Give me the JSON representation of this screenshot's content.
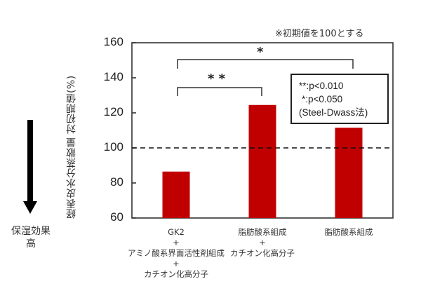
{
  "note": "※初期値を100とする",
  "arrow_label": [
    "保湿効果",
    "高"
  ],
  "legend": {
    "lines": [
      "**:p<0.010",
      " *:p<0.050",
      "(Steel-Dwass法)"
    ]
  },
  "significance": {
    "outer": {
      "label": "*",
      "from": 0,
      "to": 2
    },
    "inner": {
      "label": "* *",
      "from": 0,
      "to": 1
    }
  },
  "colors": {
    "bar": "#c00000",
    "axis": "#333333",
    "reference_line": "#111111"
  },
  "chart_data": {
    "type": "bar",
    "title": "",
    "ylabel": "経表皮水分蒸散量 対初期値(%)",
    "xlabel": "",
    "ylim": [
      60,
      160
    ],
    "yticks": [
      60,
      80,
      100,
      120,
      140,
      160
    ],
    "reference_line": {
      "y": 100,
      "style": "dashed"
    },
    "categories": [
      "GK2 + アミノ酸系界面活性剤組成 + カチオン化高分子",
      "脂肪酸系組成 + カチオン化高分子",
      "脂肪酸系組成"
    ],
    "category_lines": [
      [
        "GK2",
        "+",
        "アミノ酸系界面活性剤組成",
        "+",
        "カチオン化高分子"
      ],
      [
        "脂肪酸系組成",
        "+",
        "カチオン化高分子"
      ],
      [
        "脂肪酸系組成"
      ]
    ],
    "values": [
      86.5,
      124.5,
      111.5
    ],
    "legend": [
      "**: p<0.010",
      "*: p<0.050",
      "(Steel-Dwass法)"
    ],
    "annotations": [
      "※初期値を100とする",
      "保湿効果 高 (downward arrow)",
      "* between bar 1 and bar 3",
      "** between bar 1 and bar 2"
    ],
    "grid": false
  }
}
